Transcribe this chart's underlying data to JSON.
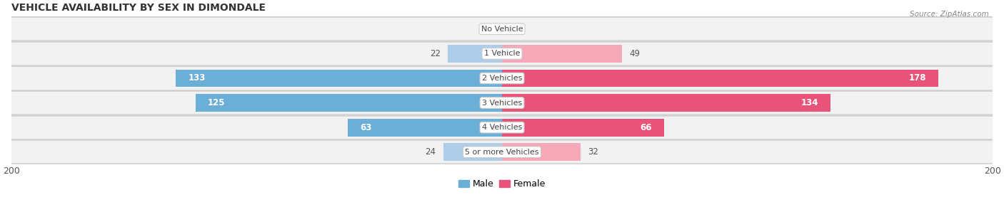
{
  "title": "VEHICLE AVAILABILITY BY SEX IN DIMONDALE",
  "source": "Source: ZipAtlas.com",
  "categories": [
    "No Vehicle",
    "1 Vehicle",
    "2 Vehicles",
    "3 Vehicles",
    "4 Vehicles",
    "5 or more Vehicles"
  ],
  "male_values": [
    0,
    22,
    133,
    125,
    63,
    24
  ],
  "female_values": [
    0,
    49,
    178,
    134,
    66,
    32
  ],
  "male_color_large": "#6baed6",
  "female_color_large": "#e8537a",
  "male_color_small": "#aecde8",
  "female_color_small": "#f4a8b8",
  "axis_max": 200,
  "bar_height": 0.72,
  "row_bg_color": "#e8e8e8",
  "row_panel_color": "#f0f0f0",
  "background_color": "#ffffff",
  "legend_male": "Male",
  "legend_female": "Female",
  "large_threshold": 50
}
